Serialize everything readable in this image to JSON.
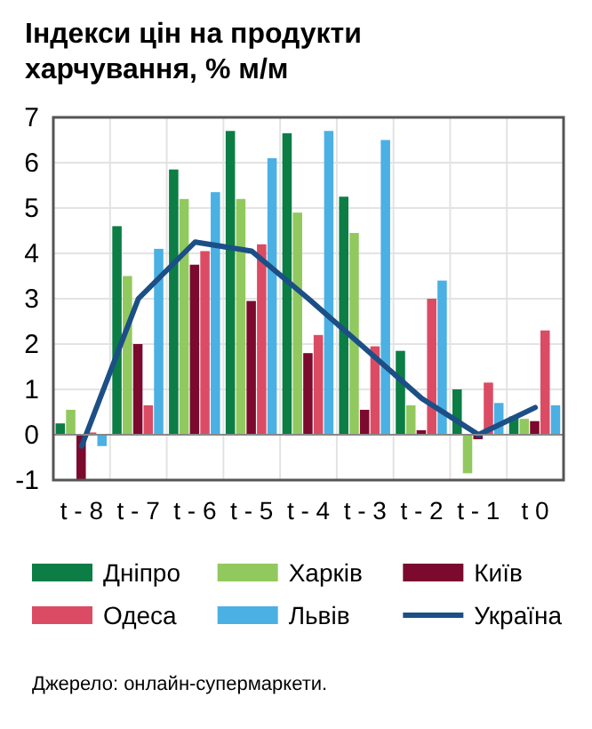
{
  "chart_data": {
    "type": "bar",
    "title": "Індекси цін на продукти харчування, % м/м",
    "categories": [
      "t - 8",
      "t - 7",
      "t - 6",
      "t - 5",
      "t - 4",
      "t - 3",
      "t - 2",
      "t - 1",
      "t 0"
    ],
    "series": [
      {
        "name": "Дніпро",
        "color": "#0b7d45",
        "values": [
          0.25,
          4.6,
          5.85,
          6.7,
          6.65,
          5.25,
          1.85,
          1.0,
          0.4
        ]
      },
      {
        "name": "Харків",
        "color": "#92c95e",
        "values": [
          0.55,
          3.5,
          5.2,
          5.2,
          4.9,
          4.45,
          0.65,
          -0.85,
          0.35
        ]
      },
      {
        "name": "Київ",
        "color": "#7b0a2e",
        "values": [
          -1.0,
          2.0,
          3.75,
          2.95,
          1.8,
          0.55,
          0.1,
          -0.1,
          0.3
        ]
      },
      {
        "name": "Одеса",
        "color": "#db4c64",
        "values": [
          0.05,
          0.65,
          4.05,
          4.2,
          2.2,
          1.95,
          3.0,
          1.15,
          2.3
        ]
      },
      {
        "name": "Львів",
        "color": "#4bb0e3",
        "values": [
          -0.25,
          4.1,
          5.35,
          6.1,
          6.7,
          6.5,
          3.4,
          0.7,
          0.65
        ]
      },
      {
        "name": "Україна",
        "type": "line",
        "color": "#1c4f86",
        "values": [
          -0.25,
          3.0,
          4.25,
          4.05,
          3.0,
          1.9,
          0.8,
          0.0,
          0.6
        ]
      }
    ],
    "ylim": [
      -1,
      7
    ],
    "yticks": [
      -1,
      0,
      1,
      2,
      3,
      4,
      5,
      6,
      7
    ],
    "grid": true,
    "legend": "bottom",
    "line_style": "solid",
    "marker": "none",
    "annotations": [
      "Джерело: онлайн-супермаркети."
    ]
  }
}
